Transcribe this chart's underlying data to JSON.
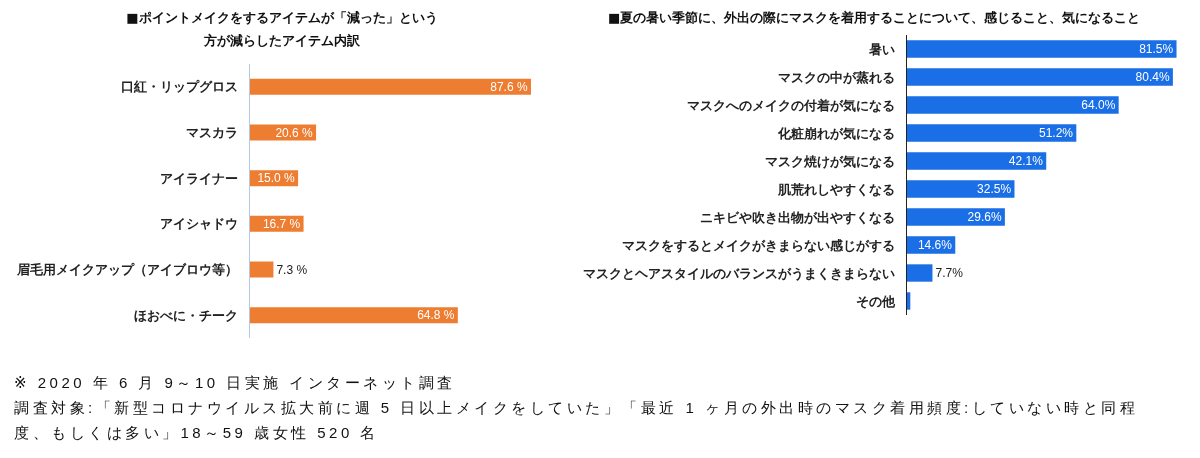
{
  "chart_data": [
    {
      "type": "bar",
      "orientation": "horizontal",
      "title": "■ポイントメイクをするアイテムが「減った」という方が減らしたアイテム内訳",
      "categories": [
        "口紅・リップグロス",
        "マスカラ",
        "アイライナー",
        "アイシャドウ",
        "眉毛用メイクアップ（アイブロウ等）",
        "ほおべに・チーク"
      ],
      "values": [
        87.6,
        20.6,
        15.0,
        16.7,
        7.3,
        64.8
      ],
      "value_labels": [
        "87.6 %",
        "20.6 %",
        "15.0 %",
        "16.7 %",
        "7.3 %",
        "64.8 %"
      ],
      "color": "#ed7d31",
      "annotations": [
        "※ 2020 年 6 月 9～10 日実施  インターネット調査",
        "調査対象:「新型コロナウイルス拡大前に週 5 日以上メイクをしていた」「最近 1 ヶ月の外出時のマスク着用頻度:していない時と同程度、もしくは多い」18～59 歳女性  520 名"
      ]
    },
    {
      "type": "bar",
      "orientation": "horizontal",
      "title": "■夏の暑い季節に、外出の際にマスクを着用することについて、感じること、気になること",
      "categories": [
        "暑い",
        "マスクの中が蒸れる",
        "マスクへのメイクの付着が気になる",
        "化粧崩れが気になる",
        "マスク焼けが気になる",
        "肌荒れしやすくなる",
        "ニキビや吹き出物が出やすくなる",
        "マスクをするとメイクがきまらない感じがする",
        "マスクとヘアスタイルのバランスがうまくきまらない",
        "その他"
      ],
      "values": [
        81.5,
        80.4,
        64.0,
        51.2,
        42.1,
        32.5,
        29.6,
        14.6,
        7.7,
        1.0
      ],
      "value_labels": [
        "81.5%",
        "80.4%",
        "64.0%",
        "51.2%",
        "42.1%",
        "32.5%",
        "29.6%",
        "14.6%",
        "7.7%",
        null
      ],
      "color": "#1a6ee6"
    }
  ]
}
